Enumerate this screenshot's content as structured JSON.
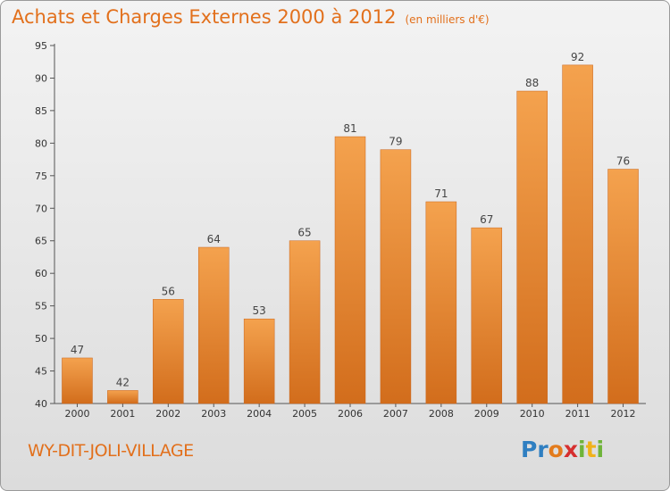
{
  "header": {
    "title": "Achats et Charges Externes 2000 à 2012",
    "subtitle": "(en milliers d'€)"
  },
  "footer": {
    "commune": "WY-DIT-JOLI-VILLAGE",
    "logo_letters": [
      {
        "ch": "P",
        "color": "#2f7fc1"
      },
      {
        "ch": "r",
        "color": "#2f7fc1"
      },
      {
        "ch": "o",
        "color": "#e37b1c"
      },
      {
        "ch": "x",
        "color": "#d62f2f"
      },
      {
        "ch": "i",
        "color": "#6fb43a"
      },
      {
        "ch": "t",
        "color": "#f0b21a"
      },
      {
        "ch": "i",
        "color": "#6fb43a"
      }
    ]
  },
  "colors": {
    "accent": "#e2701c",
    "bar_top": "#f4a24e",
    "bar_bottom": "#d26d1c"
  },
  "chart_data": {
    "type": "bar",
    "categories": [
      "2000",
      "2001",
      "2002",
      "2003",
      "2004",
      "2005",
      "2006",
      "2007",
      "2008",
      "2009",
      "2010",
      "2011",
      "2012"
    ],
    "values": [
      47,
      42,
      56,
      64,
      53,
      65,
      81,
      79,
      71,
      67,
      88,
      92,
      76
    ],
    "ylim": [
      40,
      95
    ],
    "yticks": [
      40,
      45,
      50,
      55,
      60,
      65,
      70,
      75,
      80,
      85,
      90,
      95
    ],
    "grid": false
  }
}
